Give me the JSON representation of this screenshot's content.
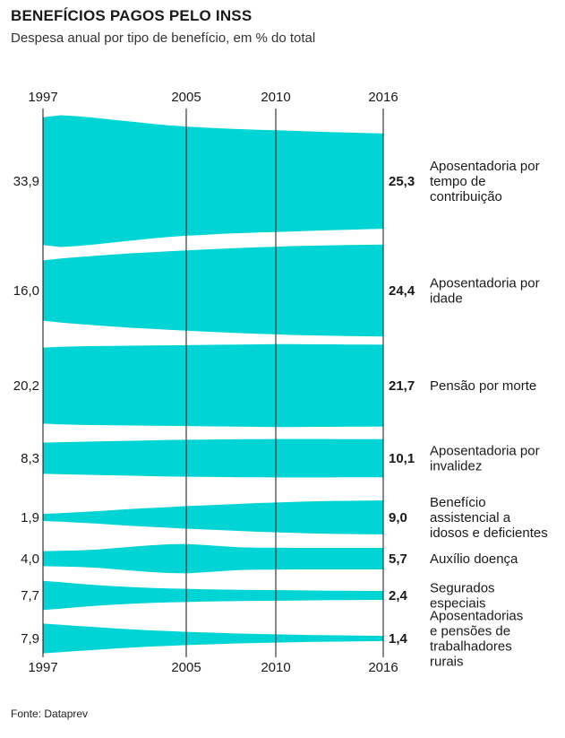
{
  "title": "BENEFÍCIOS PAGOS PELO INSS",
  "subtitle": "Despesa anual por tipo de benefício, em % do total",
  "source": "Fonte: Dataprev",
  "colors": {
    "band": "#00d4d4",
    "line": "#111111"
  },
  "chart_data": {
    "type": "area",
    "x_ticks": [
      "1997",
      "2005",
      "2010",
      "2016"
    ],
    "x_range": [
      1997,
      2016
    ],
    "series": [
      {
        "name": "Aposentadoria por tempo de contribuição",
        "label_lines": [
          "Aposentadoria por",
          "tempo de",
          "contribuição"
        ],
        "start_label": "33,9",
        "end_label": "25,3",
        "x": [
          1997,
          1998,
          1999,
          2000,
          2001,
          2002,
          2003,
          2004,
          2005,
          2006,
          2007,
          2008,
          2009,
          2010,
          2011,
          2012,
          2013,
          2014,
          2015,
          2016
        ],
        "values": [
          33.9,
          35.0,
          34.4,
          33.5,
          32.5,
          31.5,
          30.5,
          29.6,
          29.0,
          28.5,
          28.0,
          27.6,
          27.3,
          27.0,
          26.7,
          26.4,
          26.1,
          25.8,
          25.5,
          25.3
        ]
      },
      {
        "name": "Aposentadoria por idade",
        "label_lines": [
          "Aposentadoria por",
          "idade"
        ],
        "start_label": "16,0",
        "end_label": "24,4",
        "x": [
          1997,
          1998,
          1999,
          2000,
          2001,
          2002,
          2003,
          2004,
          2005,
          2006,
          2007,
          2008,
          2009,
          2010,
          2011,
          2012,
          2013,
          2014,
          2015,
          2016
        ],
        "values": [
          16.0,
          17.0,
          17.8,
          18.5,
          19.2,
          19.8,
          20.3,
          20.8,
          21.3,
          21.8,
          22.2,
          22.6,
          23.0,
          23.3,
          23.6,
          23.8,
          24.0,
          24.2,
          24.3,
          24.4
        ]
      },
      {
        "name": "Pensão por morte",
        "label_lines": [
          "Pensão por morte"
        ],
        "start_label": "20,2",
        "end_label": "21,7",
        "x": [
          1997,
          1998,
          1999,
          2000,
          2001,
          2002,
          2003,
          2004,
          2005,
          2006,
          2007,
          2008,
          2009,
          2010,
          2011,
          2012,
          2013,
          2014,
          2015,
          2016
        ],
        "values": [
          20.2,
          20.6,
          20.8,
          21.0,
          21.1,
          21.2,
          21.3,
          21.4,
          21.5,
          21.6,
          21.7,
          21.8,
          21.9,
          22.0,
          22.0,
          21.9,
          21.9,
          21.8,
          21.8,
          21.7
        ]
      },
      {
        "name": "Aposentadoria por invalidez",
        "label_lines": [
          "Aposentadoria por",
          "invalidez"
        ],
        "start_label": "8,3",
        "end_label": "10,1",
        "x": [
          1997,
          1998,
          1999,
          2000,
          2001,
          2002,
          2003,
          2004,
          2005,
          2006,
          2007,
          2008,
          2009,
          2010,
          2011,
          2012,
          2013,
          2014,
          2015,
          2016
        ],
        "values": [
          8.3,
          8.5,
          8.7,
          8.9,
          9.1,
          9.3,
          9.5,
          9.7,
          9.8,
          9.9,
          10.0,
          10.1,
          10.1,
          10.2,
          10.2,
          10.2,
          10.2,
          10.1,
          10.1,
          10.1
        ]
      },
      {
        "name": "Benefício assistencial a idosos e deficientes",
        "label_lines": [
          "Benefício",
          "assistencial a",
          "idosos e deficientes"
        ],
        "start_label": "1,9",
        "end_label": "9,0",
        "x": [
          1997,
          1998,
          1999,
          2000,
          2001,
          2002,
          2003,
          2004,
          2005,
          2006,
          2007,
          2008,
          2009,
          2010,
          2011,
          2012,
          2013,
          2014,
          2015,
          2016
        ],
        "values": [
          1.9,
          2.3,
          2.8,
          3.3,
          3.9,
          4.5,
          5.0,
          5.5,
          6.0,
          6.4,
          6.8,
          7.2,
          7.6,
          7.9,
          8.2,
          8.5,
          8.7,
          8.8,
          8.9,
          9.0
        ]
      },
      {
        "name": "Auxílio doença",
        "label_lines": [
          "Auxílio doença"
        ],
        "start_label": "4,0",
        "end_label": "5,7",
        "x": [
          1997,
          1998,
          1999,
          2000,
          2001,
          2002,
          2003,
          2004,
          2005,
          2006,
          2007,
          2008,
          2009,
          2010,
          2011,
          2012,
          2013,
          2014,
          2015,
          2016
        ],
        "values": [
          4.0,
          4.2,
          4.4,
          4.8,
          5.6,
          6.4,
          7.1,
          7.6,
          7.8,
          7.3,
          6.6,
          6.0,
          5.8,
          5.8,
          5.7,
          5.7,
          5.7,
          5.7,
          5.7,
          5.7
        ]
      },
      {
        "name": "Segurados especiais",
        "label_lines": [
          "Segurados",
          "especiais"
        ],
        "start_label": "7,7",
        "end_label": "2,4",
        "x": [
          1997,
          1998,
          1999,
          2000,
          2001,
          2002,
          2003,
          2004,
          2005,
          2006,
          2007,
          2008,
          2009,
          2010,
          2011,
          2012,
          2013,
          2014,
          2015,
          2016
        ],
        "values": [
          7.7,
          7.0,
          6.2,
          5.5,
          4.9,
          4.4,
          4.0,
          3.7,
          3.5,
          3.3,
          3.1,
          3.0,
          2.9,
          2.8,
          2.7,
          2.6,
          2.5,
          2.5,
          2.4,
          2.4
        ]
      },
      {
        "name": "Aposentadorias e pensões de trabalhadores rurais",
        "label_lines": [
          "Aposentadorias",
          "e pensões de",
          "trabalhadores",
          "rurais"
        ],
        "start_label": "7,9",
        "end_label": "1,4",
        "x": [
          1997,
          1998,
          1999,
          2000,
          2001,
          2002,
          2003,
          2004,
          2005,
          2006,
          2007,
          2008,
          2009,
          2010,
          2011,
          2012,
          2013,
          2014,
          2015,
          2016
        ],
        "values": [
          7.9,
          7.3,
          6.6,
          6.0,
          5.4,
          4.8,
          4.3,
          3.9,
          3.5,
          3.2,
          2.9,
          2.6,
          2.4,
          2.2,
          2.0,
          1.8,
          1.7,
          1.6,
          1.5,
          1.4
        ]
      }
    ]
  }
}
